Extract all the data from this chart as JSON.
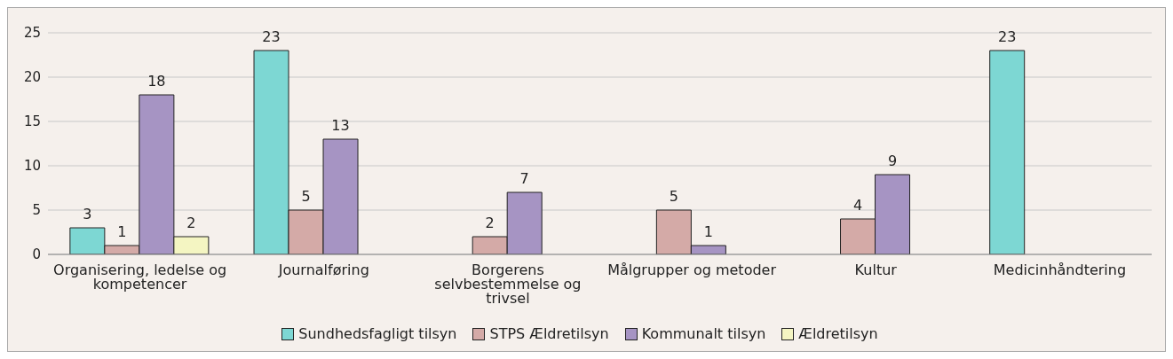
{
  "chart_data": {
    "type": "bar",
    "categories": [
      "Organisering, ledelse og kompetencer",
      "Journalføring",
      "Borgerens selvbestemmelse og trivsel",
      "Målgrupper og metoder",
      "Kultur",
      "Medicinhåndtering"
    ],
    "series": [
      {
        "name": "Sundhedsfagligt tilsyn",
        "color": "#7dd7d3",
        "values": [
          3,
          23,
          null,
          null,
          null,
          23
        ]
      },
      {
        "name": "STPS Ældretilsyn",
        "color": "#d4aaa7",
        "values": [
          1,
          5,
          2,
          5,
          4,
          null
        ]
      },
      {
        "name": "Kommunalt tilsyn",
        "color": "#a694c3",
        "values": [
          18,
          13,
          7,
          1,
          9,
          null
        ]
      },
      {
        "name": "Ældretilsyn",
        "color": "#f4f5c2",
        "values": [
          2,
          null,
          null,
          null,
          null,
          null
        ]
      }
    ],
    "ylim": [
      0,
      25
    ],
    "yticks": [
      0,
      5,
      10,
      15,
      20,
      25
    ],
    "grid": "y",
    "legend": "bottom",
    "data_labels": true
  }
}
